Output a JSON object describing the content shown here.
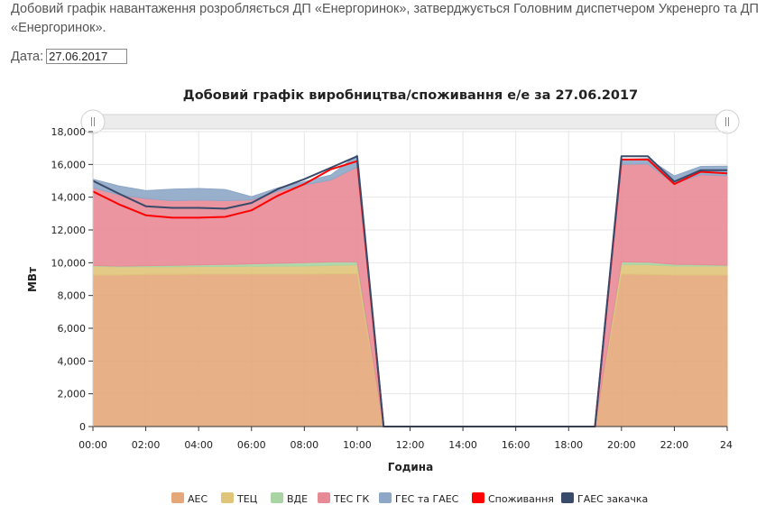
{
  "intro_text": "Добовий графік навантаження розробляється ДП «Енергоринок», затверджується Головним диспетчером Укренерго та ДП «Енергоринок».",
  "date_label": "Дата:",
  "date_value": "27.06.2017",
  "chart_data": {
    "type": "area",
    "stacked": true,
    "title": "Добовий графік виробництва/споживання е/е за 27.06.2017",
    "xlabel": "Година",
    "ylabel": "МВт",
    "ylim": [
      0,
      18000
    ],
    "yticks": [
      0,
      2000,
      4000,
      6000,
      8000,
      10000,
      12000,
      14000,
      16000,
      18000
    ],
    "ytick_labels": [
      "0",
      "2,000",
      "4,000",
      "6,000",
      "8,000",
      "10,000",
      "12,000",
      "14,000",
      "16,000",
      "18,000"
    ],
    "xlim": [
      0,
      24
    ],
    "xticks": [
      0,
      2,
      4,
      6,
      8,
      10,
      12,
      14,
      16,
      18,
      20,
      22,
      24
    ],
    "xtick_labels": [
      "00:00",
      "02:00",
      "04:00",
      "06:00",
      "08:00",
      "10:00",
      "12:00",
      "14:00",
      "16:00",
      "18:00",
      "20:00",
      "22:00",
      "24"
    ],
    "grid": true,
    "legend_position": "bottom",
    "x": [
      0,
      1,
      2,
      3,
      4,
      5,
      6,
      7,
      8,
      9,
      10,
      11,
      12,
      13,
      14,
      15,
      16,
      17,
      18,
      19,
      20,
      21,
      22,
      23,
      24
    ],
    "series": [
      {
        "name": "АЕС",
        "color": "#e4a77a",
        "values": [
          9250,
          9250,
          9280,
          9280,
          9300,
          9300,
          9300,
          9300,
          9300,
          9320,
          9320,
          0,
          0,
          0,
          0,
          0,
          0,
          0,
          0,
          0,
          9300,
          9280,
          9250,
          9250,
          9250
        ]
      },
      {
        "name": "ТЕЦ",
        "color": "#e0c47a",
        "values": [
          550,
          500,
          480,
          480,
          470,
          470,
          480,
          490,
          500,
          520,
          550,
          0,
          0,
          0,
          0,
          0,
          0,
          0,
          0,
          0,
          600,
          600,
          550,
          550,
          550
        ]
      },
      {
        "name": "ВДЕ",
        "color": "#a9d4a3",
        "values": [
          30,
          40,
          60,
          80,
          100,
          120,
          150,
          180,
          200,
          210,
          180,
          0,
          0,
          0,
          0,
          0,
          0,
          0,
          0,
          0,
          150,
          150,
          100,
          80,
          50
        ]
      },
      {
        "name": "ТЕС ГК",
        "color": "#e88a96",
        "values": [
          4750,
          4350,
          4100,
          3950,
          3950,
          3900,
          3900,
          4400,
          4750,
          5000,
          5800,
          0,
          0,
          0,
          0,
          0,
          0,
          0,
          0,
          0,
          5950,
          6000,
          4900,
          5500,
          5450
        ]
      },
      {
        "name": "ГЕС та ГАЕС",
        "color": "#8ea7c7",
        "values": [
          520,
          540,
          480,
          700,
          710,
          680,
          200,
          200,
          200,
          300,
          720,
          0,
          0,
          0,
          0,
          0,
          0,
          0,
          0,
          0,
          300,
          330,
          500,
          500,
          600
        ]
      }
    ],
    "lines": [
      {
        "name": "Споживання",
        "color": "#ff0000",
        "values": [
          14350,
          13550,
          12900,
          12750,
          12750,
          12800,
          13200,
          14100,
          14800,
          15700,
          16200,
          0,
          0,
          0,
          0,
          0,
          0,
          0,
          0,
          0,
          16300,
          16300,
          14800,
          15550,
          15450
        ]
      },
      {
        "name": "ГАЕС закачка",
        "color": "#3a4a6b",
        "values": [
          15000,
          14200,
          13450,
          13350,
          13350,
          13300,
          13650,
          14500,
          15100,
          15800,
          16500,
          0,
          0,
          0,
          0,
          0,
          0,
          0,
          0,
          0,
          16500,
          16500,
          14950,
          15650,
          15650
        ]
      }
    ],
    "legend": [
      "АЕС",
      "ТЕЦ",
      "ВДЕ",
      "ТЕС ГК",
      "ГЕС та ГАЕС",
      "Споживання",
      "ГАЕС закачка"
    ]
  }
}
